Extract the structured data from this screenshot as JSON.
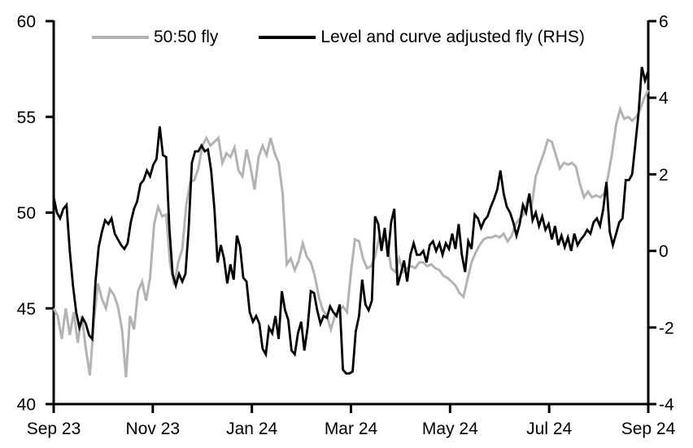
{
  "page": {
    "background": "#ffffff",
    "text_color": "#000000"
  },
  "chart_data": {
    "type": "line",
    "title": "",
    "grid": false,
    "legend": {
      "position": "top-inside"
    },
    "x_axis": {
      "tick_labels": [
        "Sep 23",
        "Nov 23",
        "Jan 24",
        "Mar 24",
        "May 24",
        "Jul 24",
        "Sep 24"
      ]
    },
    "left_axis": {
      "min": 40,
      "max": 60,
      "ticks": [
        60,
        55,
        50,
        45,
        40
      ]
    },
    "right_axis": {
      "min": -4,
      "max": 6,
      "ticks": [
        6,
        4,
        2,
        0,
        -2,
        -4
      ]
    },
    "series": [
      {
        "name": "50:50 fly",
        "axis": "left",
        "color": "#b3b3b3",
        "line_width": 3,
        "values": [
          45.0,
          44.6,
          43.4,
          45.0,
          43.6,
          44.8,
          43.2,
          44.6,
          42.9,
          41.5,
          44.3,
          46.3,
          45.5,
          45.0,
          46.0,
          45.7,
          45.1,
          43.9,
          41.4,
          44.6,
          43.9,
          45.9,
          46.4,
          45.4,
          46.6,
          49.4,
          50.3,
          49.8,
          49.9,
          47.3,
          46.2,
          47.4,
          48.1,
          50.4,
          51.6,
          51.7,
          52.3,
          53.5,
          53.9,
          53.5,
          53.7,
          53.9,
          52.6,
          53.1,
          52.9,
          53.4,
          52.2,
          51.9,
          53.3,
          52.4,
          51.2,
          52.9,
          53.5,
          53.0,
          53.9,
          53.1,
          52.6,
          51.0,
          47.3,
          47.6,
          47.0,
          47.5,
          48.4,
          47.7,
          47.4,
          46.7,
          45.6,
          44.9,
          44.6,
          43.9,
          44.6,
          44.9,
          45.1,
          44.8,
          46.9,
          48.6,
          48.5,
          47.6,
          47.1,
          47.2,
          47.7,
          48.7,
          48.6,
          48.5,
          47.1,
          46.9,
          47.6,
          46.9,
          47.1,
          47.2,
          47.1,
          47.4,
          47.4,
          47.2,
          47.3,
          47.1,
          47.0,
          46.7,
          46.6,
          46.4,
          46.2,
          45.8,
          45.6,
          46.5,
          47.4,
          47.9,
          48.3,
          48.6,
          48.7,
          48.7,
          48.8,
          48.7,
          48.9,
          48.5,
          48.8,
          49.4,
          49.7,
          49.9,
          50.7,
          50.4,
          51.9,
          52.5,
          53.1,
          53.8,
          53.7,
          53.0,
          52.3,
          52.6,
          52.5,
          52.6,
          52.4,
          51.5,
          50.8,
          51.1,
          50.8,
          50.9,
          50.8,
          51.0,
          51.9,
          53.1,
          54.6,
          55.4,
          54.9,
          55.0,
          54.8,
          55.0,
          55.4,
          56.0,
          56.4
        ]
      },
      {
        "name": "Level and curve adjusted fly (RHS)",
        "axis": "right",
        "color": "#000000",
        "line_width": 2.8,
        "values": [
          1.4,
          1.0,
          0.85,
          1.1,
          1.2,
          0.0,
          -0.9,
          -1.6,
          -2.0,
          -1.75,
          -1.9,
          -2.2,
          -2.3,
          -0.8,
          0.1,
          0.5,
          0.8,
          0.7,
          0.85,
          0.45,
          0.3,
          0.15,
          0.05,
          0.2,
          0.75,
          1.1,
          1.3,
          1.75,
          1.85,
          2.1,
          1.95,
          2.25,
          2.4,
          3.25,
          2.5,
          2.45,
          0.6,
          -0.6,
          -0.9,
          -0.6,
          -0.8,
          -0.6,
          0.6,
          2.3,
          2.6,
          2.6,
          2.75,
          2.6,
          2.65,
          2.1,
          1.1,
          -0.3,
          0.15,
          -0.2,
          -0.85,
          -0.35,
          -0.75,
          0.4,
          0.1,
          -0.7,
          -0.8,
          -1.6,
          -1.85,
          -1.7,
          -1.9,
          -2.55,
          -2.7,
          -2.0,
          -2.15,
          -1.7,
          -2.3,
          -1.05,
          -1.55,
          -1.8,
          -2.6,
          -2.7,
          -2.15,
          -1.85,
          -2.6,
          -2.0,
          -1.05,
          -1.1,
          -1.55,
          -1.9,
          -1.7,
          -1.75,
          -1.45,
          -1.6,
          -1.7,
          -1.4,
          -3.1,
          -3.2,
          -3.2,
          -3.15,
          -2.1,
          -1.7,
          -0.75,
          -1.4,
          -1.55,
          -1.3,
          0.9,
          0.7,
          0.0,
          0.6,
          -0.15,
          0.75,
          1.1,
          -0.9,
          -0.6,
          -0.25,
          -0.8,
          -0.1,
          0.2,
          -0.1,
          -0.1,
          0.0,
          -0.3,
          0.15,
          0.25,
          0.0,
          0.2,
          -0.1,
          0.2,
          0.05,
          0.45,
          0.05,
          0.7,
          -0.1,
          -0.55,
          0.25,
          0.05,
          0.95,
          0.85,
          0.6,
          0.8,
          0.9,
          1.15,
          1.35,
          1.6,
          2.1,
          1.5,
          1.15,
          1.0,
          0.75,
          0.4,
          0.7,
          1.2,
          1.0,
          1.5,
          0.8,
          1.0,
          0.65,
          0.9,
          0.55,
          0.7,
          0.3,
          0.65,
          0.15,
          0.4,
          0.1,
          0.35,
          0.0,
          0.45,
          0.15,
          0.3,
          0.4,
          0.55,
          0.45,
          0.75,
          0.85,
          0.65,
          1.1,
          1.8,
          0.5,
          0.15,
          0.45,
          0.75,
          0.85,
          1.85,
          1.85,
          2.0,
          2.8,
          3.6,
          4.8,
          4.45,
          4.7
        ]
      }
    ],
    "style": {
      "axis_color": "#000000",
      "tick_font_size": 21,
      "legend_font_size": 21
    }
  }
}
